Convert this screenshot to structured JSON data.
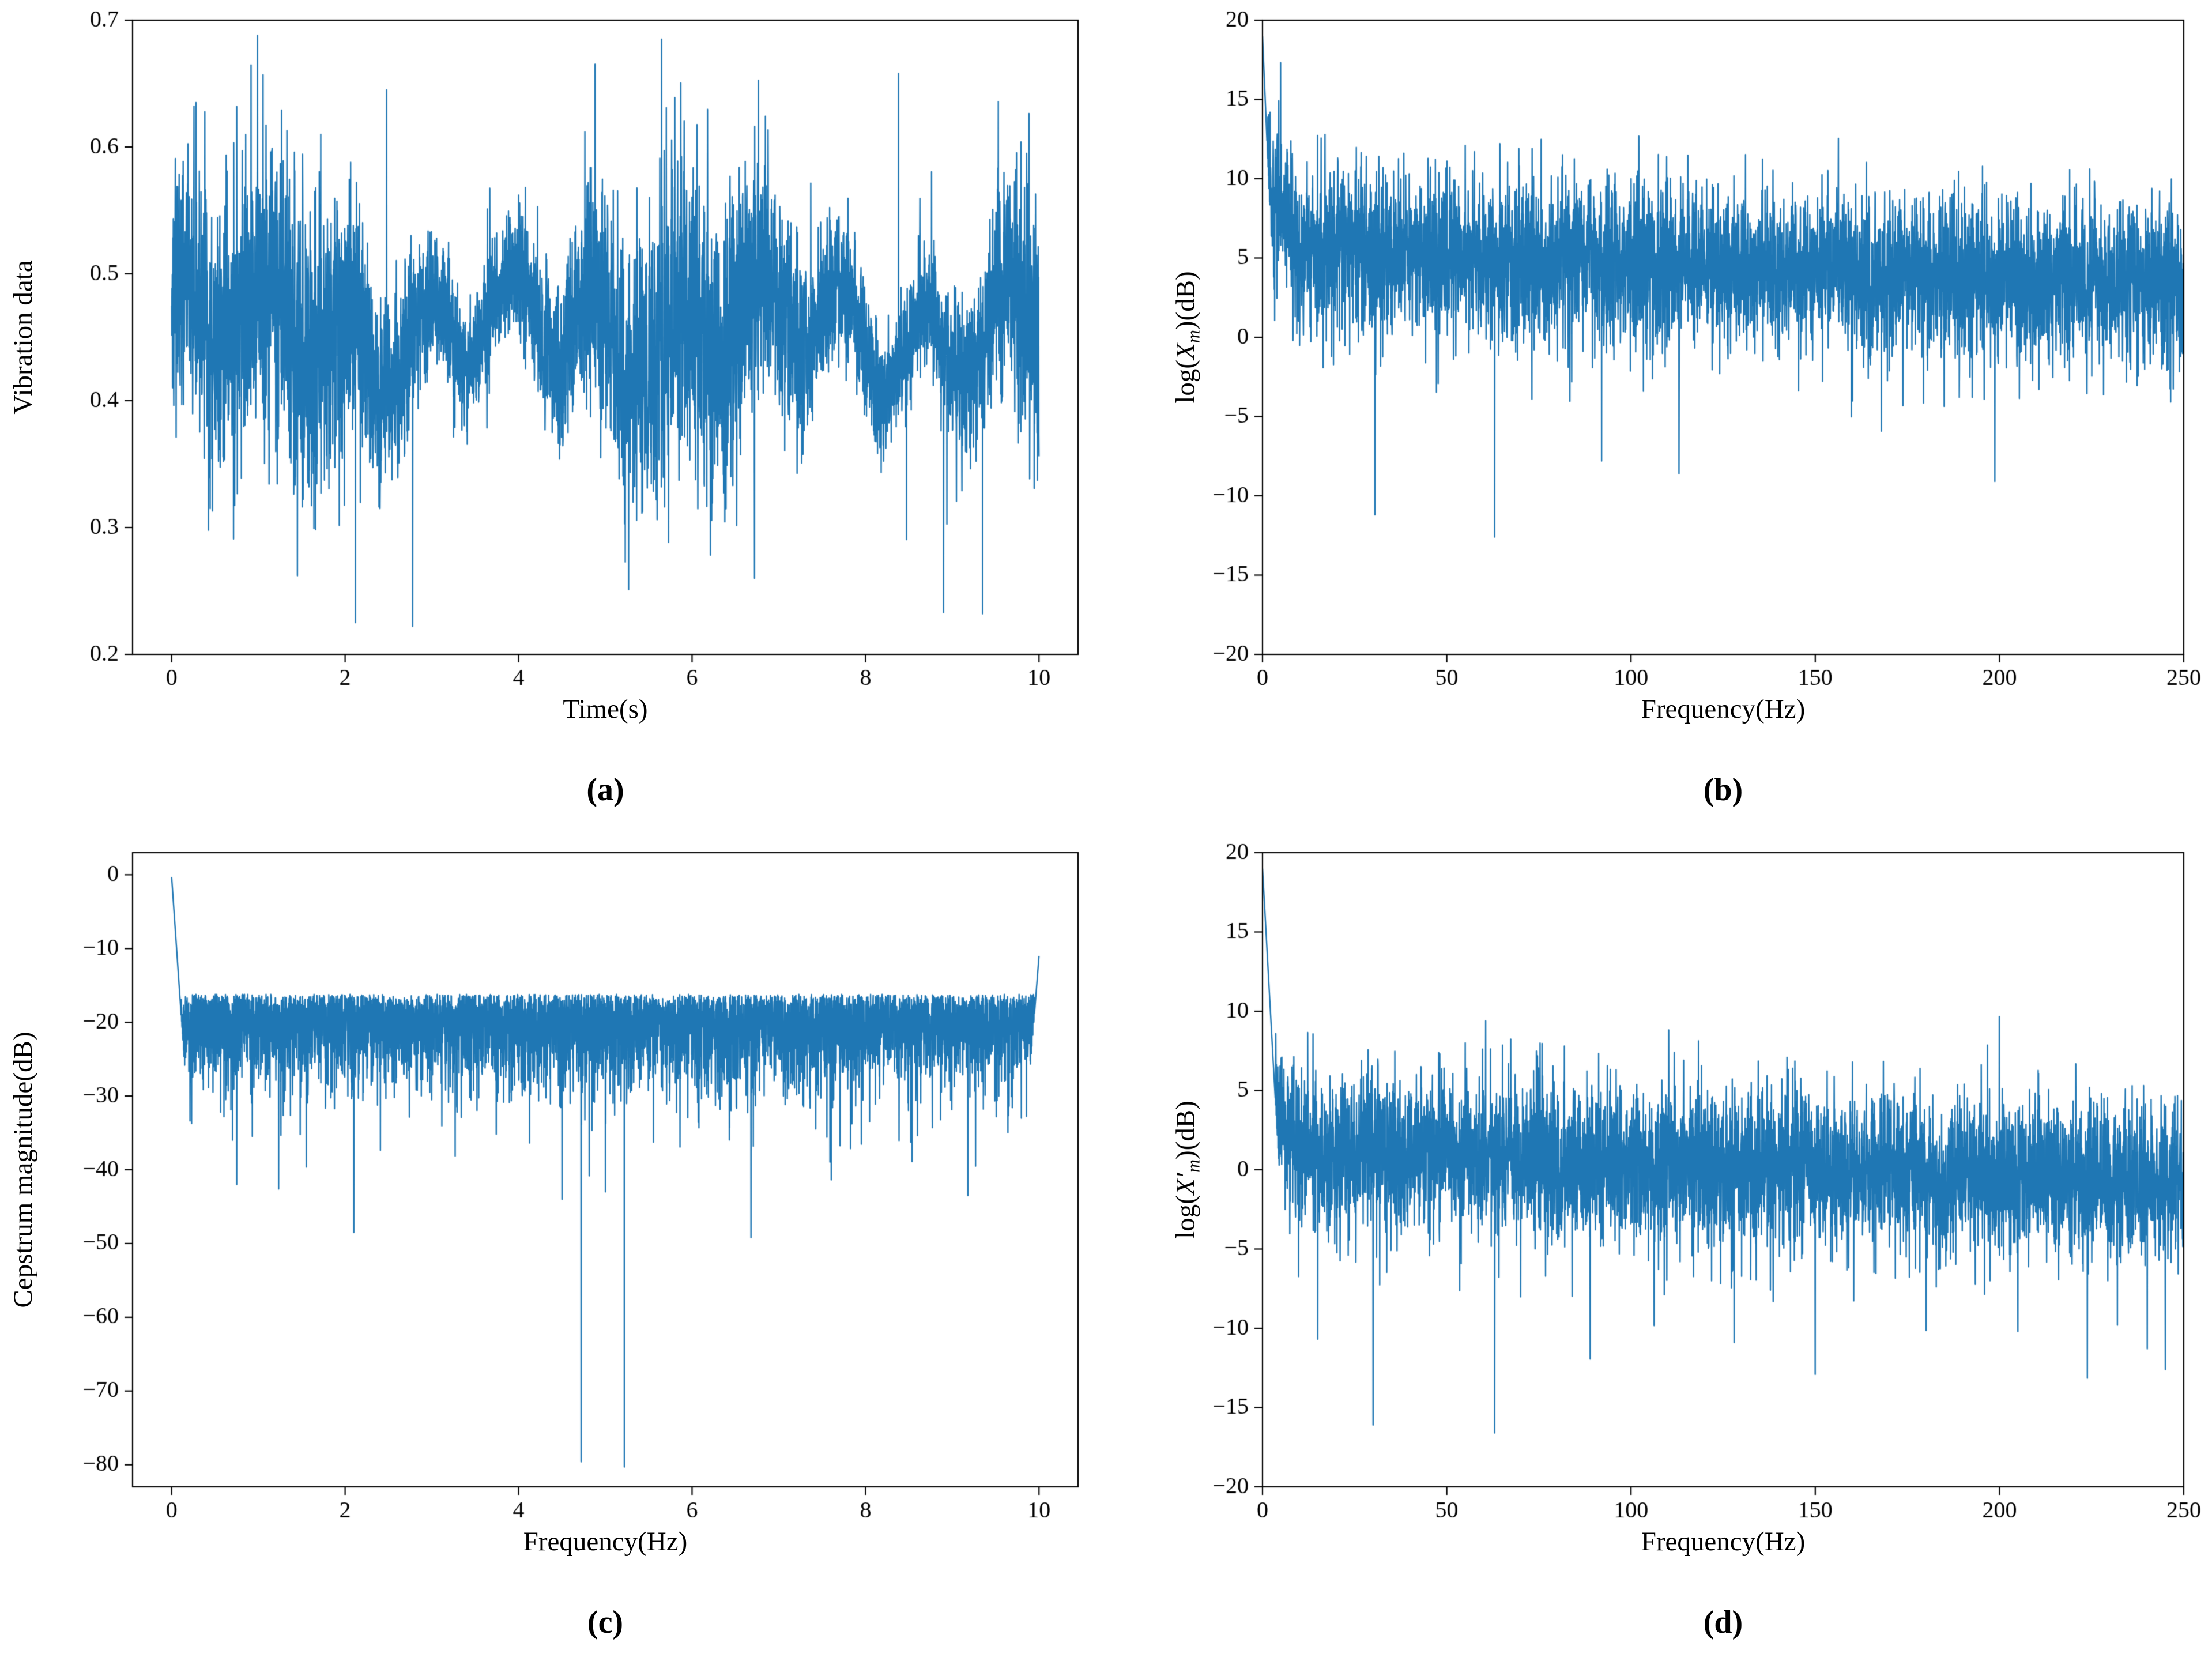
{
  "page": {
    "background": "#ffffff"
  },
  "chart_data": [
    {
      "id": "a",
      "type": "line",
      "caption": "(a)",
      "xlabel": "Time(s)",
      "ylabel": "Vibration data",
      "line_color": "#1f77b4",
      "grid": false,
      "legend": "none",
      "xlim": [
        -0.45,
        10.45
      ],
      "ylim": [
        0.2,
        0.7
      ],
      "xticks": [
        0,
        2,
        4,
        6,
        8,
        10
      ],
      "xtick_labels": [
        "0",
        "2",
        "4",
        "6",
        "8",
        "10"
      ],
      "yticks": [
        0.2,
        0.3,
        0.4,
        0.5,
        0.6,
        0.7
      ],
      "ytick_labels": [
        "0.2",
        "0.3",
        "0.4",
        "0.5",
        "0.6",
        "0.7"
      ],
      "signal": {
        "kind": "vibration",
        "seed": 12345,
        "n": 5200,
        "x_start": 0,
        "x_end": 10,
        "mean": 0.455,
        "osc_amp": 0.032,
        "osc_freq": 1.05,
        "osc_phase": 0.8,
        "osc2_amp": 0.018,
        "osc2_freq": 0.32,
        "noise_amp": 0.042,
        "env_mod": 0.45,
        "env_freq": 0.21,
        "tail_prob": 0.02,
        "tail_amp": 0.06,
        "clamp_min": 0.215,
        "clamp_max": 0.688,
        "extremes": [
          {
            "x": 5.65,
            "y": 0.685
          },
          {
            "x": 2.12,
            "y": 0.225
          },
          {
            "x": 2.48,
            "y": 0.645
          },
          {
            "x": 8.38,
            "y": 0.658
          },
          {
            "x": 0.28,
            "y": 0.635
          },
          {
            "x": 9.35,
            "y": 0.232
          },
          {
            "x": 8.9,
            "y": 0.233
          },
          {
            "x": 2.78,
            "y": 0.222
          },
          {
            "x": 6.72,
            "y": 0.26
          },
          {
            "x": 1.45,
            "y": 0.262
          }
        ]
      }
    },
    {
      "id": "b",
      "type": "line",
      "caption": "(b)",
      "xlabel": "Frequency(Hz)",
      "ylabel_parts": {
        "pre": "log(",
        "var": "X",
        "sub": "m",
        "post": ")(dB)"
      },
      "line_color": "#1f77b4",
      "grid": false,
      "legend": "none",
      "xlim": [
        0,
        250
      ],
      "ylim": [
        -20,
        20
      ],
      "xticks": [
        0,
        50,
        100,
        150,
        200,
        250
      ],
      "xtick_labels": [
        "0",
        "50",
        "100",
        "150",
        "200",
        "250"
      ],
      "yticks": [
        -20,
        -15,
        -10,
        -5,
        0,
        5,
        10,
        15,
        20
      ],
      "ytick_labels": [
        "−20",
        "−15",
        "−10",
        "−5",
        "0",
        "5",
        "10",
        "15",
        "20"
      ],
      "signal": {
        "kind": "spectrum",
        "seed": 777,
        "n": 5000,
        "x_start": 0,
        "x_end": 250,
        "base_start": 5.6,
        "base_end": 3.2,
        "noise": 2.5,
        "up_prob": 0.06,
        "up_scale": 1.6,
        "dip_prob": 0.03,
        "dip_scale": 3.2,
        "early_boost": 5.5,
        "early_decay": 0.5,
        "peak_top": 19.0,
        "peak_decay": 5.5,
        "clamp_min": -19.6,
        "clamp_max": 19.2,
        "extremes": [
          {
            "x": 63,
            "y": -12.6
          },
          {
            "x": 30.5,
            "y": -11.2
          },
          {
            "x": 55,
            "y": 12.1
          },
          {
            "x": 57,
            "y": 10.5
          },
          {
            "x": 45.5,
            "y": 9.8
          },
          {
            "x": 100,
            "y": 10.0
          },
          {
            "x": 196,
            "y": 9.6
          },
          {
            "x": 113,
            "y": -8.6
          },
          {
            "x": 92,
            "y": -7.8
          },
          {
            "x": 148,
            "y": 8.9
          }
        ]
      }
    },
    {
      "id": "c",
      "type": "line",
      "caption": "(c)",
      "xlabel": "Frequency(Hz)",
      "ylabel": "Cepstrum magnitude(dB)",
      "line_color": "#1f77b4",
      "grid": false,
      "legend": "none",
      "xlim": [
        -0.45,
        10.45
      ],
      "ylim": [
        -83,
        3
      ],
      "xticks": [
        0,
        2,
        4,
        6,
        8,
        10
      ],
      "xtick_labels": [
        "0",
        "2",
        "4",
        "6",
        "8",
        "10"
      ],
      "yticks": [
        0,
        -10,
        -20,
        -30,
        -40,
        -50,
        -60,
        -70,
        -80
      ],
      "ytick_labels": [
        "0",
        "−10",
        "−20",
        "−30",
        "−40",
        "−50",
        "−60",
        "−70",
        "−80"
      ],
      "signal": {
        "kind": "cepstrum",
        "seed": 424242,
        "n": 6000,
        "x_start": 0,
        "x_end": 10,
        "band_top": -16.2,
        "spread": 5.5,
        "deep_prob": 0.06,
        "deep_scale": 7,
        "cap": -15.6,
        "cap_jitter": 0.5,
        "left_peak": -0.3,
        "left_decay": 170,
        "right_peak": -11.0,
        "right_decay": 150,
        "clamp_min": -82.5,
        "clamp_max": 2.5,
        "extremes": [
          {
            "x": 4.72,
            "y": -79.6
          },
          {
            "x": 5.22,
            "y": -80.3
          },
          {
            "x": 2.1,
            "y": -48.5
          },
          {
            "x": 6.68,
            "y": -49.2
          },
          {
            "x": 4.5,
            "y": -44.0
          },
          {
            "x": 5.0,
            "y": -43.0
          },
          {
            "x": 9.18,
            "y": -43.5
          },
          {
            "x": 0.75,
            "y": -42.0
          }
        ]
      }
    },
    {
      "id": "d",
      "type": "line",
      "caption": "(d)",
      "xlabel": "Frequency(Hz)",
      "ylabel_parts": {
        "pre": "log(",
        "var": "X′",
        "sub": "m",
        "post": ")(dB)"
      },
      "line_color": "#1f77b4",
      "grid": false,
      "legend": "none",
      "xlim": [
        0,
        250
      ],
      "ylim": [
        -20,
        20
      ],
      "xticks": [
        0,
        50,
        100,
        150,
        200,
        250
      ],
      "xtick_labels": [
        "0",
        "50",
        "100",
        "150",
        "200",
        "250"
      ],
      "yticks": [
        -20,
        -15,
        -10,
        -5,
        0,
        5,
        10,
        15,
        20
      ],
      "ytick_labels": [
        "−20",
        "−15",
        "−10",
        "−5",
        "0",
        "5",
        "10",
        "15",
        "20"
      ],
      "signal": {
        "kind": "spectrum",
        "seed": 999,
        "n": 5000,
        "x_start": 0,
        "x_end": 250,
        "base_start": 1.5,
        "base_end": -0.8,
        "noise": 2.4,
        "up_prob": 0.04,
        "up_scale": 1.4,
        "dip_prob": 0.05,
        "dip_scale": 3.5,
        "early_boost": 3.0,
        "early_decay": 0.35,
        "peak_top": 19.0,
        "peak_decay": 4.2,
        "clamp_min": -19.6,
        "clamp_max": 19.2,
        "extremes": [
          {
            "x": 30,
            "y": -16.1
          },
          {
            "x": 63,
            "y": -16.6
          },
          {
            "x": 55,
            "y": 8.0
          },
          {
            "x": 97,
            "y": 5.3
          },
          {
            "x": 150,
            "y": -12.9
          },
          {
            "x": 245,
            "y": -12.6
          },
          {
            "x": 128,
            "y": -10.9
          },
          {
            "x": 205,
            "y": -10.2
          },
          {
            "x": 232,
            "y": -9.8
          },
          {
            "x": 43,
            "y": 6.5
          }
        ]
      }
    }
  ]
}
